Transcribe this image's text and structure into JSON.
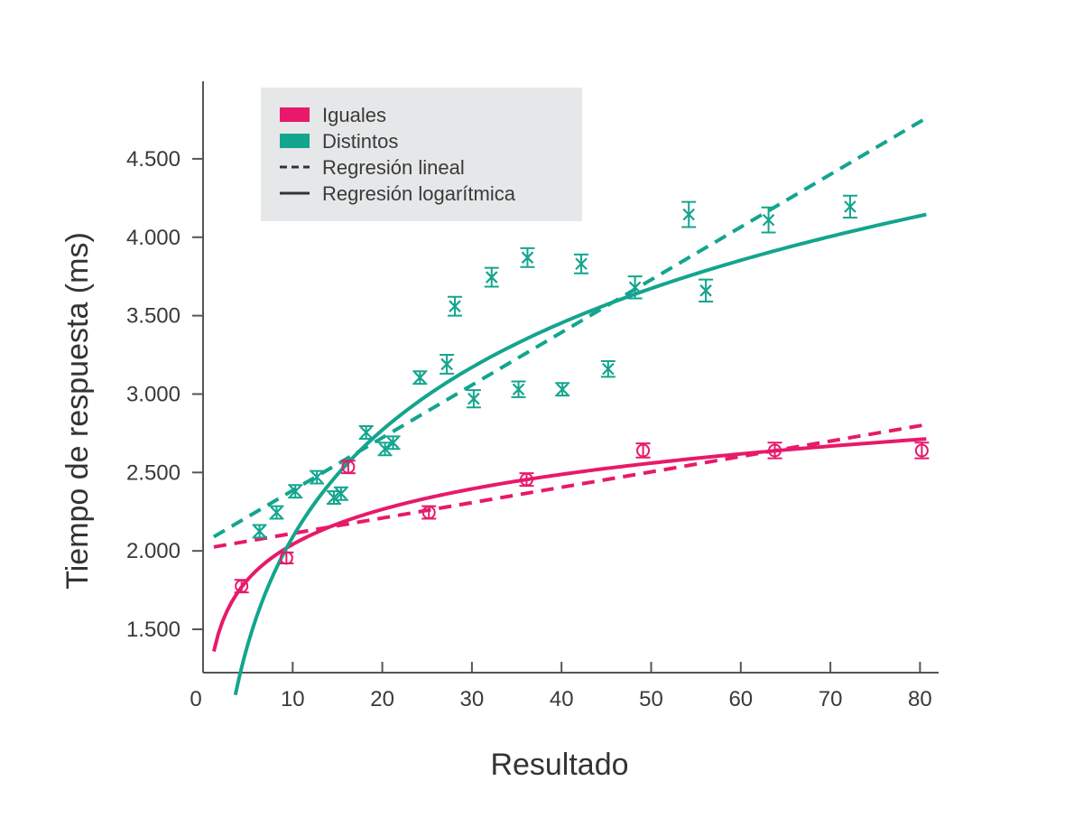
{
  "chart_data": {
    "type": "scatter",
    "title": "",
    "xlabel": "Resultado",
    "ylabel": "Tiempo de respuesta (ms)",
    "xlim": [
      0,
      82
    ],
    "ylim": [
      1270,
      4950
    ],
    "x_ticks": [
      0,
      10,
      20,
      30,
      40,
      50,
      60,
      70,
      80
    ],
    "x_tick_labels": [
      "0",
      "10",
      "20",
      "30",
      "40",
      "50",
      "60",
      "70",
      "80"
    ],
    "y_ticks": [
      1500,
      2000,
      2500,
      3000,
      3500,
      4000,
      4500
    ],
    "y_tick_labels": [
      "1.500",
      "2.000",
      "2.500",
      "3.000",
      "3.500",
      "4.000",
      "4.500"
    ],
    "grid": false,
    "legend": {
      "position": "top-left",
      "entries": [
        {
          "label": "Iguales",
          "kind": "color",
          "color": "#e8196a"
        },
        {
          "label": "Distintos",
          "kind": "color",
          "color": "#13a58e"
        },
        {
          "label": "Regresión lineal",
          "kind": "dashed"
        },
        {
          "label": "Regresión logarítmica",
          "kind": "solid"
        }
      ]
    },
    "series": [
      {
        "name": "Iguales",
        "color": "#e8196a",
        "marker": "circle",
        "points": [
          {
            "x": 4.3,
            "y": 1775,
            "err": 40
          },
          {
            "x": 9.3,
            "y": 1955,
            "err": 35
          },
          {
            "x": 16.2,
            "y": 2535,
            "err": 40
          },
          {
            "x": 25.2,
            "y": 2245,
            "err": 40
          },
          {
            "x": 36.1,
            "y": 2455,
            "err": 40
          },
          {
            "x": 49.1,
            "y": 2640,
            "err": 45
          },
          {
            "x": 63.8,
            "y": 2640,
            "err": 50
          },
          {
            "x": 80.2,
            "y": 2640,
            "err": 50
          }
        ],
        "linear_fit": {
          "x": [
            1.2,
            80.7
          ],
          "y": [
            2025,
            2805
          ]
        },
        "log_fit": {
          "a": 1300,
          "b": 322,
          "x_range": [
            1.2,
            80.7
          ]
        }
      },
      {
        "name": "Distintos",
        "color": "#13a58e",
        "marker": "x",
        "points": [
          {
            "x": 6.3,
            "y": 2125,
            "err": 40
          },
          {
            "x": 8.2,
            "y": 2245,
            "err": 40
          },
          {
            "x": 10.3,
            "y": 2380,
            "err": 40
          },
          {
            "x": 12.7,
            "y": 2470,
            "err": 40
          },
          {
            "x": 14.6,
            "y": 2340,
            "err": 40
          },
          {
            "x": 15.4,
            "y": 2365,
            "err": 40
          },
          {
            "x": 18.2,
            "y": 2755,
            "err": 40
          },
          {
            "x": 20.3,
            "y": 2650,
            "err": 40
          },
          {
            "x": 21.2,
            "y": 2690,
            "err": 40
          },
          {
            "x": 24.2,
            "y": 3105,
            "err": 40
          },
          {
            "x": 27.2,
            "y": 3190,
            "err": 60
          },
          {
            "x": 28.1,
            "y": 3560,
            "err": 60
          },
          {
            "x": 30.2,
            "y": 2970,
            "err": 55
          },
          {
            "x": 32.2,
            "y": 3745,
            "err": 60
          },
          {
            "x": 35.2,
            "y": 3030,
            "err": 50
          },
          {
            "x": 36.2,
            "y": 3870,
            "err": 60
          },
          {
            "x": 40.1,
            "y": 3030,
            "err": 40
          },
          {
            "x": 42.2,
            "y": 3830,
            "err": 60
          },
          {
            "x": 45.2,
            "y": 3160,
            "err": 50
          },
          {
            "x": 48.2,
            "y": 3680,
            "err": 70
          },
          {
            "x": 54.2,
            "y": 4145,
            "err": 80
          },
          {
            "x": 56.1,
            "y": 3660,
            "err": 70
          },
          {
            "x": 63.1,
            "y": 4110,
            "err": 80
          },
          {
            "x": 72.2,
            "y": 4195,
            "err": 70
          }
        ],
        "linear_fit": {
          "x": [
            1.2,
            80.7
          ],
          "y": [
            2090,
            4760
          ]
        },
        "log_fit": {
          "a": -180,
          "b": 985,
          "x_range": [
            3.6,
            80.7
          ]
        }
      }
    ]
  }
}
